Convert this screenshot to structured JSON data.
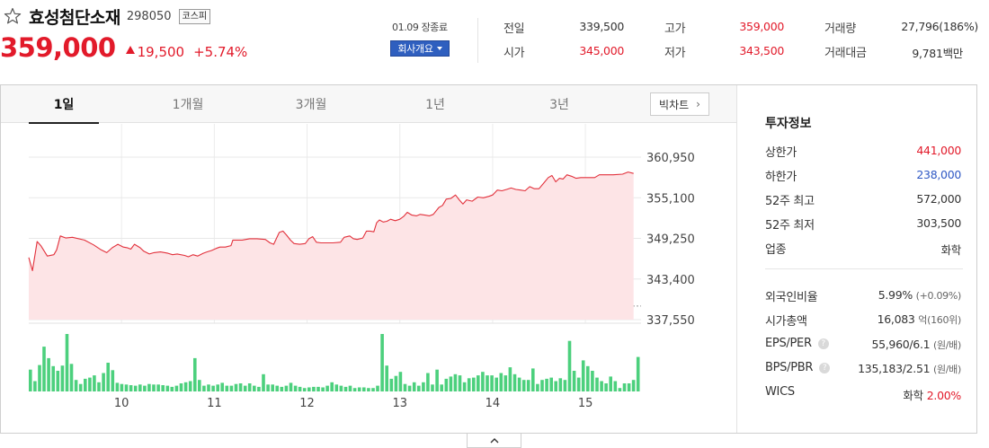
{
  "header": {
    "name": "효성첨단소재",
    "code": "298050",
    "market": "코스피",
    "price": "359,000",
    "change": "19,500",
    "change_pct": "+5.74%",
    "close_time": "01.09 장종료",
    "company_button": "회사개요"
  },
  "quote": [
    {
      "label": "전일",
      "value": "339,500",
      "color": "#333333"
    },
    {
      "label": "시가",
      "value": "345,000",
      "color": "#e21a2a"
    },
    {
      "label": "고가",
      "value": "359,000",
      "color": "#e21a2a"
    },
    {
      "label": "저가",
      "value": "343,500",
      "color": "#e21a2a"
    },
    {
      "label": "거래량",
      "value": "27,796(186%)",
      "color": "#333333"
    },
    {
      "label": "거래대금",
      "value": "9,781백만",
      "color": "#333333"
    }
  ],
  "tabs": [
    "1일",
    "1개월",
    "3개월",
    "1년",
    "3년"
  ],
  "active_tab": "1일",
  "bigchart_label": "빅차트",
  "colors": {
    "up": "#e21a2a",
    "down": "#2f58c4",
    "line": "#e2313c",
    "area": "#fde4e6",
    "volume": "#4cd07d",
    "accent_button": "#2f5fbf"
  },
  "chart_data": {
    "type": "line",
    "title": "",
    "xlabel": "",
    "ylabel": "",
    "y_ticks": [
      "360,950",
      "355,100",
      "349,250",
      "343,400",
      "337,550"
    ],
    "ylim": [
      337550,
      360950
    ],
    "x_ticks": [
      "10",
      "11",
      "12",
      "13",
      "14",
      "15"
    ],
    "x_tick_pos": [
      10,
      11,
      12,
      13,
      14,
      15
    ],
    "xlim": [
      9.0,
      15.6
    ],
    "reference_price": 339500,
    "grid": true,
    "series": [
      {
        "values": [
          [
            9.0,
            346500
          ],
          [
            9.04,
            344600
          ],
          [
            9.09,
            348800
          ],
          [
            9.13,
            348200
          ],
          [
            9.2,
            346700
          ],
          [
            9.27,
            346900
          ],
          [
            9.3,
            347600
          ],
          [
            9.34,
            349600
          ],
          [
            9.4,
            349300
          ],
          [
            9.47,
            349400
          ],
          [
            9.6,
            349000
          ],
          [
            9.7,
            348300
          ],
          [
            9.78,
            347600
          ],
          [
            9.84,
            347200
          ],
          [
            9.9,
            347900
          ],
          [
            9.96,
            348400
          ],
          [
            10.02,
            348000
          ],
          [
            10.06,
            347900
          ],
          [
            10.1,
            347700
          ],
          [
            10.14,
            348400
          ],
          [
            10.2,
            347900
          ],
          [
            10.24,
            347400
          ],
          [
            10.3,
            347000
          ],
          [
            10.35,
            347200
          ],
          [
            10.42,
            347300
          ],
          [
            10.5,
            347100
          ],
          [
            10.55,
            346900
          ],
          [
            10.6,
            347000
          ],
          [
            10.68,
            346800
          ],
          [
            10.72,
            346600
          ],
          [
            10.77,
            346900
          ],
          [
            10.82,
            346700
          ],
          [
            10.88,
            347100
          ],
          [
            10.92,
            347300
          ],
          [
            10.97,
            347500
          ],
          [
            11.02,
            347800
          ],
          [
            11.06,
            348000
          ],
          [
            11.12,
            348000
          ],
          [
            11.18,
            348200
          ],
          [
            11.2,
            349000
          ],
          [
            11.3,
            349000
          ],
          [
            11.38,
            349200
          ],
          [
            11.46,
            349200
          ],
          [
            11.55,
            349100
          ],
          [
            11.6,
            348600
          ],
          [
            11.64,
            348400
          ],
          [
            11.7,
            350100
          ],
          [
            11.74,
            350300
          ],
          [
            11.78,
            349700
          ],
          [
            11.82,
            349000
          ],
          [
            11.86,
            348500
          ],
          [
            11.92,
            348400
          ],
          [
            11.98,
            348500
          ],
          [
            12.02,
            349200
          ],
          [
            12.06,
            349500
          ],
          [
            12.1,
            348700
          ],
          [
            12.15,
            348600
          ],
          [
            12.2,
            348600
          ],
          [
            12.28,
            348600
          ],
          [
            12.36,
            348700
          ],
          [
            12.4,
            349400
          ],
          [
            12.46,
            349600
          ],
          [
            12.5,
            349200
          ],
          [
            12.54,
            349100
          ],
          [
            12.6,
            349300
          ],
          [
            12.64,
            350300
          ],
          [
            12.68,
            350300
          ],
          [
            12.72,
            350200
          ],
          [
            12.75,
            351500
          ],
          [
            12.78,
            351900
          ],
          [
            12.82,
            351600
          ],
          [
            12.86,
            351700
          ],
          [
            12.9,
            352000
          ],
          [
            12.95,
            351800
          ],
          [
            13.0,
            352000
          ],
          [
            13.04,
            352400
          ],
          [
            13.08,
            353000
          ],
          [
            13.13,
            352600
          ],
          [
            13.18,
            352500
          ],
          [
            13.22,
            352700
          ],
          [
            13.27,
            352600
          ],
          [
            13.32,
            352500
          ],
          [
            13.36,
            352700
          ],
          [
            13.42,
            353700
          ],
          [
            13.46,
            354000
          ],
          [
            13.5,
            354900
          ],
          [
            13.55,
            355000
          ],
          [
            13.6,
            355500
          ],
          [
            13.64,
            354800
          ],
          [
            13.68,
            354200
          ],
          [
            13.72,
            354800
          ],
          [
            13.78,
            354600
          ],
          [
            13.84,
            355200
          ],
          [
            13.9,
            355100
          ],
          [
            13.96,
            355300
          ],
          [
            14.0,
            355500
          ],
          [
            14.05,
            356200
          ],
          [
            14.1,
            356100
          ],
          [
            14.15,
            356300
          ],
          [
            14.2,
            356500
          ],
          [
            14.25,
            356300
          ],
          [
            14.3,
            356200
          ],
          [
            14.35,
            356100
          ],
          [
            14.4,
            356700
          ],
          [
            14.45,
            356400
          ],
          [
            14.5,
            356400
          ],
          [
            14.55,
            357200
          ],
          [
            14.6,
            358000
          ],
          [
            14.64,
            358300
          ],
          [
            14.68,
            357400
          ],
          [
            14.72,
            357900
          ],
          [
            14.76,
            357800
          ],
          [
            14.8,
            358400
          ],
          [
            14.85,
            358200
          ],
          [
            14.9,
            357900
          ],
          [
            14.95,
            358000
          ],
          [
            15.0,
            358000
          ],
          [
            15.1,
            358000
          ],
          [
            15.15,
            358400
          ],
          [
            15.2,
            358400
          ],
          [
            15.3,
            358400
          ],
          [
            15.4,
            358500
          ],
          [
            15.46,
            358800
          ],
          [
            15.52,
            358600
          ]
        ]
      }
    ],
    "volume": {
      "relative_values": [
        0.38,
        0.18,
        0.46,
        0.78,
        0.58,
        0.44,
        0.36,
        0.45,
        1.0,
        0.48,
        0.2,
        0.13,
        0.22,
        0.24,
        0.28,
        0.16,
        0.32,
        0.5,
        0.37,
        0.15,
        0.13,
        0.12,
        0.11,
        0.1,
        0.12,
        0.1,
        0.13,
        0.12,
        0.12,
        0.11,
        0.1,
        0.08,
        0.1,
        0.14,
        0.16,
        0.18,
        0.58,
        0.2,
        0.1,
        0.12,
        0.1,
        0.12,
        0.15,
        0.1,
        0.1,
        0.13,
        0.14,
        0.1,
        0.14,
        0.1,
        0.08,
        0.3,
        0.12,
        0.12,
        0.1,
        0.08,
        0.1,
        0.15,
        0.1,
        0.08,
        0.06,
        0.07,
        0.08,
        0.08,
        0.07,
        0.1,
        0.16,
        0.12,
        0.1,
        0.08,
        0.1,
        0.06,
        0.07,
        0.07,
        0.06,
        0.06,
        0.1,
        1.0,
        0.45,
        0.22,
        0.27,
        0.34,
        0.13,
        0.1,
        0.16,
        0.1,
        0.16,
        0.32,
        0.12,
        0.38,
        0.12,
        0.22,
        0.26,
        0.3,
        0.28,
        0.16,
        0.23,
        0.24,
        0.28,
        0.34,
        0.28,
        0.28,
        0.24,
        0.32,
        0.28,
        0.42,
        0.3,
        0.24,
        0.2,
        0.2,
        0.4,
        0.13,
        0.2,
        0.22,
        0.24,
        0.18,
        0.23,
        0.2,
        0.88,
        0.36,
        0.24,
        0.54,
        0.44,
        0.36,
        0.24,
        0.18,
        0.14,
        0.26,
        0.18,
        0.06,
        0.14,
        0.14,
        0.2,
        0.6
      ]
    }
  },
  "investment_info": {
    "title": "투자정보",
    "rows": [
      {
        "label": "상한가",
        "value": "441,000",
        "style": "red"
      },
      {
        "label": "하한가",
        "value": "238,000",
        "style": "blue"
      },
      {
        "label": "52주 최고",
        "value": "572,000",
        "style": ""
      },
      {
        "label": "52주 최저",
        "value": "303,500",
        "style": ""
      },
      {
        "label": "업종",
        "value": "화학",
        "style": ""
      }
    ],
    "foreign_ratio": {
      "label": "외국인비율",
      "value": "5.99%",
      "sub": "(+0.09%)"
    },
    "market_cap": {
      "label": "시가총액",
      "value": "16,083",
      "unit": "억",
      "sub": "(160위)"
    },
    "eps_per": {
      "label": "EPS/PER",
      "value": "55,960/6.1",
      "sub": "(원/배)"
    },
    "bps_pbr": {
      "label": "BPS/PBR",
      "value": "135,183/2.51",
      "sub": "(원/배)"
    },
    "wics": {
      "label": "WICS",
      "value": "화학",
      "sub": "2.00%"
    }
  }
}
